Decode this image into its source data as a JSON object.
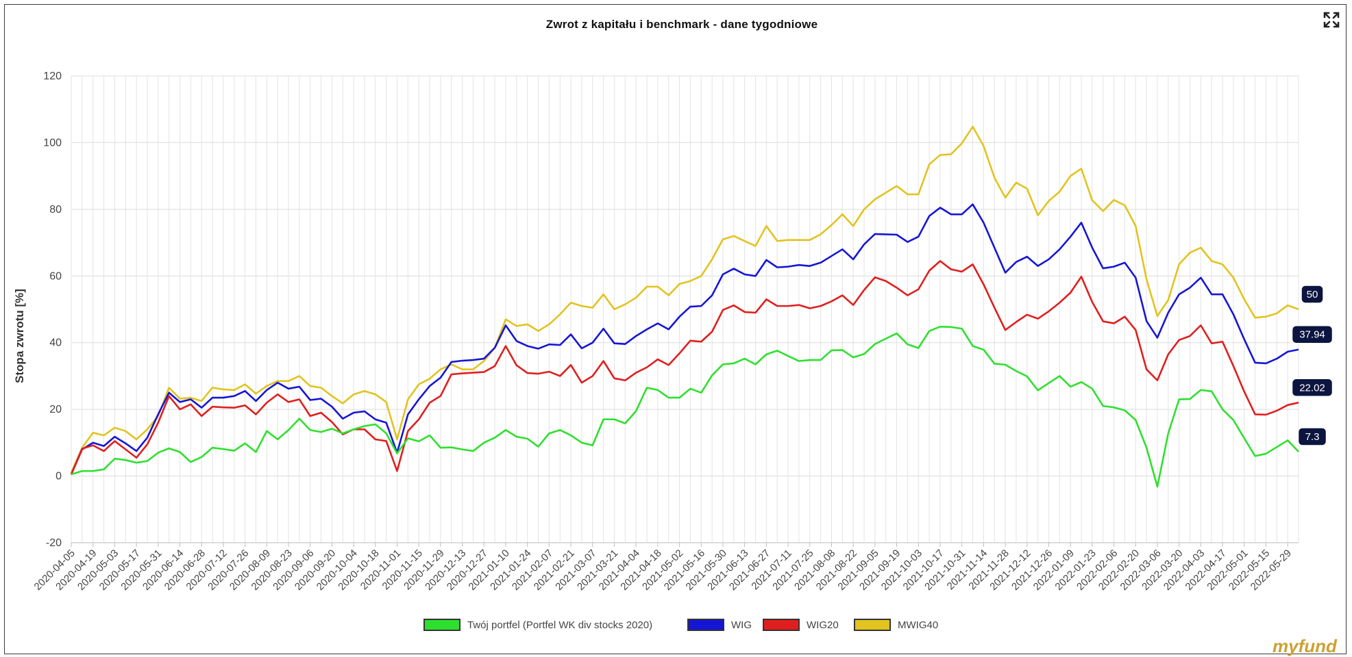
{
  "ui": {
    "expand_icon": "expand-arrows-icon",
    "brand_logo": "myfund"
  },
  "chart_data": {
    "type": "line",
    "title": "Zwrot z kapitału i benchmark - dane tygodniowe",
    "xlabel": "",
    "ylabel": "Stopa zwrotu [%]",
    "ylim": [
      -20,
      120
    ],
    "yticks": [
      -20,
      0,
      20,
      40,
      60,
      80,
      100,
      120
    ],
    "grid": true,
    "legend_position": "bottom",
    "x_tick_labels": [
      "2020-04-05",
      "2020-04-19",
      "2020-05-03",
      "2020-05-17",
      "2020-05-31",
      "2020-06-14",
      "2020-06-28",
      "2020-07-12",
      "2020-07-26",
      "2020-08-09",
      "2020-08-23",
      "2020-09-06",
      "2020-09-20",
      "2020-10-04",
      "2020-10-18",
      "2020-11-01",
      "2020-11-15",
      "2020-11-29",
      "2020-12-13",
      "2020-12-27",
      "2021-01-10",
      "2021-01-24",
      "2021-02-07",
      "2021-02-21",
      "2021-03-07",
      "2021-03-21",
      "2021-04-04",
      "2021-04-18",
      "2021-05-02",
      "2021-05-16",
      "2021-05-30",
      "2021-06-13",
      "2021-06-27",
      "2021-07-11",
      "2021-07-25",
      "2021-08-08",
      "2021-08-22",
      "2021-09-05",
      "2021-09-19",
      "2021-10-03",
      "2021-10-17",
      "2021-10-31",
      "2021-11-14",
      "2021-11-28",
      "2021-12-12",
      "2021-12-26",
      "2022-01-09",
      "2022-01-23",
      "2022-02-06",
      "2022-02-20",
      "2022-03-06",
      "2022-03-20",
      "2022-04-03",
      "2022-04-17",
      "2022-05-01",
      "2022-05-15",
      "2022-05-29"
    ],
    "x_first": "2020-04-05",
    "x_step_days": 7,
    "series": [
      {
        "name": "Twój portfel (Portfel WK div stocks 2020)",
        "color": "#2ee02e",
        "end_label": "7.3",
        "values": [
          0.5,
          1.5,
          1.5,
          2,
          5.2,
          4.8,
          4,
          4.5,
          7,
          8.3,
          7.2,
          4.2,
          5.7,
          8.5,
          8.1,
          7.6,
          9.8,
          7.2,
          13.5,
          11,
          13.8,
          17.2,
          13.8,
          13.2,
          14.2,
          12.8,
          14,
          15,
          15.5,
          12.8,
          6.8,
          11.3,
          10.4,
          12.2,
          8.5,
          8.6,
          8,
          7.5,
          10,
          11.5,
          13.8,
          11.8,
          11.2,
          8.8,
          12.8,
          13.8,
          12.2,
          10,
          9.2,
          17,
          17,
          15.8,
          19.5,
          26.5,
          25.8,
          23.5,
          23.5,
          26.2,
          25,
          30.2,
          33.5,
          33.8,
          35.2,
          33.5,
          36.5,
          37.6,
          36,
          34.5,
          34.8,
          34.8,
          37.7,
          37.8,
          35.6,
          36.6,
          39.6,
          41.2,
          42.8,
          39.5,
          38.4,
          43.5,
          44.8,
          44.7,
          44.2,
          39,
          37.9,
          33.7,
          33.4,
          31.5,
          29.9,
          25.7,
          27.9,
          30,
          26.8,
          28.2,
          26.2,
          21,
          20.6,
          19.7,
          16.8,
          8.5,
          -3.2,
          12.8,
          23,
          23.1,
          25.8,
          25.4,
          20,
          16.8,
          11.3,
          6,
          6.7,
          8.7,
          10.7,
          7.3
        ]
      },
      {
        "name": "WIG",
        "color": "#1515d6",
        "end_label": "37.94",
        "values": [
          0.5,
          8,
          10,
          9,
          11.8,
          9.8,
          7.5,
          11.5,
          18.5,
          25,
          22.2,
          23,
          20.5,
          23.5,
          23.5,
          24,
          25.5,
          22.5,
          25.8,
          28,
          26.2,
          26.8,
          22.8,
          23.2,
          20.8,
          17.2,
          19,
          19.4,
          17,
          16,
          7,
          18.5,
          23,
          27,
          29.5,
          34.2,
          34.6,
          34.8,
          35.2,
          38.5,
          45.2,
          40.5,
          39,
          38.2,
          39.5,
          39.3,
          42.5,
          38.3,
          40,
          44.2,
          39.8,
          39.6,
          42,
          44,
          45.8,
          44,
          47.8,
          50.8,
          51,
          54.2,
          60.5,
          62.2,
          60.5,
          60,
          64.8,
          62.6,
          62.8,
          63.3,
          63,
          64,
          66,
          68,
          65,
          69.5,
          72.6,
          72.5,
          72.4,
          70.2,
          71.8,
          78,
          80.5,
          78.5,
          78.5,
          81.5,
          76,
          68.5,
          61,
          64.2,
          65.8,
          63,
          65,
          68,
          71.8,
          76,
          68.5,
          62.3,
          62.8,
          64,
          59.5,
          46.5,
          41.5,
          49,
          54.5,
          56.5,
          59.5,
          54.5,
          54.5,
          48.5,
          41,
          34,
          33.8,
          35.2,
          37.3,
          37.94
        ]
      },
      {
        "name": "WIG20",
        "color": "#e01e1e",
        "end_label": "22.02",
        "values": [
          0.5,
          8.2,
          9.2,
          7.5,
          10.5,
          8,
          5.5,
          9.5,
          16,
          24,
          20,
          21.5,
          18,
          20.8,
          20.6,
          20.5,
          21.2,
          18.5,
          22,
          24.5,
          22.2,
          23,
          18,
          19,
          16.2,
          12.5,
          14,
          14,
          11,
          10.5,
          1.5,
          13.5,
          17,
          22,
          24,
          30.5,
          30.8,
          31,
          31.2,
          33,
          39,
          33.2,
          30.9,
          30.7,
          31.3,
          30,
          33.3,
          28,
          30,
          34.5,
          29.3,
          28.7,
          31,
          32.6,
          35,
          33.3,
          36.8,
          40.6,
          40.3,
          43.3,
          49.8,
          51.2,
          49.2,
          49,
          53,
          51,
          51,
          51.3,
          50.3,
          51,
          52.4,
          54.2,
          51.3,
          55.8,
          59.6,
          58.5,
          56.5,
          54.2,
          56,
          61.6,
          64.5,
          62,
          61.3,
          63.5,
          57.5,
          50.5,
          43.8,
          46.2,
          48.4,
          47.2,
          49.4,
          52,
          55,
          59.8,
          52.2,
          46.4,
          45.8,
          47.8,
          43.8,
          32,
          28.7,
          36.5,
          40.8,
          42,
          45.2,
          39.8,
          40.3,
          33,
          25.3,
          18.5,
          18.4,
          19.6,
          21.3,
          22.02
        ]
      },
      {
        "name": "MWIG40",
        "color": "#e2c31f",
        "end_label": "50",
        "values": [
          1,
          8.5,
          13,
          12.2,
          14.5,
          13.5,
          11,
          14,
          18,
          26.5,
          23.2,
          23.5,
          22.5,
          26.5,
          26,
          25.8,
          27.5,
          24.7,
          27,
          28.5,
          28.5,
          30,
          27,
          26.5,
          24,
          21.8,
          24.5,
          25.5,
          24.5,
          22.2,
          11,
          23,
          27.5,
          29.2,
          32,
          33.5,
          32,
          32,
          34.5,
          38.5,
          47,
          45,
          45.5,
          43.5,
          45.5,
          48.5,
          52,
          51,
          50.5,
          54.5,
          50,
          51.5,
          53.5,
          56.8,
          56.8,
          54.2,
          57.6,
          58.5,
          60,
          65,
          71,
          72,
          70.5,
          69,
          75,
          70.5,
          70.8,
          70.8,
          70.8,
          72.5,
          75.3,
          78.5,
          75,
          80,
          83,
          85,
          87,
          84.5,
          84.5,
          93.5,
          96.3,
          96.5,
          99.8,
          104.8,
          99,
          89.5,
          83.5,
          88,
          86.2,
          78.2,
          82.5,
          85.3,
          90,
          92.2,
          82.7,
          79.5,
          82.8,
          81.2,
          75,
          59,
          48,
          52.8,
          63.5,
          67,
          68.5,
          64.5,
          63.5,
          59.5,
          53,
          47.5,
          47.8,
          48.8,
          51.2,
          50
        ]
      }
    ]
  }
}
